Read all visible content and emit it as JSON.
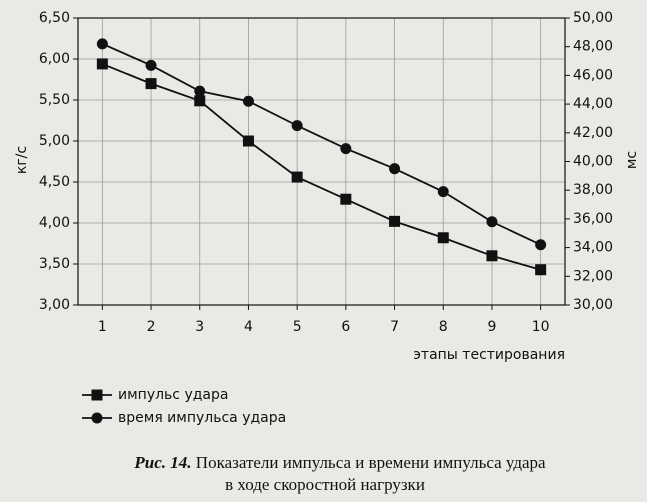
{
  "chart_data": {
    "type": "line",
    "ylabel": "кг/с",
    "y2label": "мс",
    "xlabel": "этапы тестирования",
    "x": [
      1,
      2,
      3,
      4,
      5,
      6,
      7,
      8,
      9,
      10
    ],
    "xlim": [
      0.5,
      10.5
    ],
    "xticks": [
      1,
      2,
      3,
      4,
      5,
      6,
      7,
      8,
      9,
      10
    ],
    "ylim": [
      3.0,
      6.5
    ],
    "yticks": [
      {
        "value": 3.0,
        "label": "3,00"
      },
      {
        "value": 3.5,
        "label": "3,50"
      },
      {
        "value": 4.0,
        "label": "4,00"
      },
      {
        "value": 4.5,
        "label": "4,50"
      },
      {
        "value": 5.0,
        "label": "5,00"
      },
      {
        "value": 5.5,
        "label": "5,50"
      },
      {
        "value": 6.0,
        "label": "6,00"
      },
      {
        "value": 6.5,
        "label": "6,50"
      }
    ],
    "y2lim": [
      30,
      50
    ],
    "y2ticks": [
      {
        "value": 30,
        "label": "30,00"
      },
      {
        "value": 32,
        "label": "32,00"
      },
      {
        "value": 34,
        "label": "34,00"
      },
      {
        "value": 36,
        "label": "36,00"
      },
      {
        "value": 38,
        "label": "38,00"
      },
      {
        "value": 40,
        "label": "40,00"
      },
      {
        "value": 42,
        "label": "42,00"
      },
      {
        "value": 44,
        "label": "44,00"
      },
      {
        "value": 46,
        "label": "46,00"
      },
      {
        "value": 48,
        "label": "48,00"
      },
      {
        "value": 50,
        "label": "50,00"
      }
    ],
    "grid": true,
    "series": [
      {
        "name": "импульс удара",
        "color": "#111111",
        "marker": "square",
        "values": [
          5.94,
          5.7,
          5.49,
          5.0,
          4.56,
          4.29,
          4.02,
          3.82,
          3.6,
          3.43
        ]
      },
      {
        "name": "время импульса удара",
        "color": "#111111",
        "marker": "circle",
        "axis": "y2",
        "values": [
          48.2,
          46.7,
          44.9,
          44.2,
          42.5,
          40.9,
          39.5,
          37.9,
          35.8,
          34.2
        ]
      }
    ],
    "caption_label": "Рис. 14.",
    "caption": [
      "Показатели импульса и времени импульса удара",
      "в ходе скоростной нагрузки"
    ]
  }
}
